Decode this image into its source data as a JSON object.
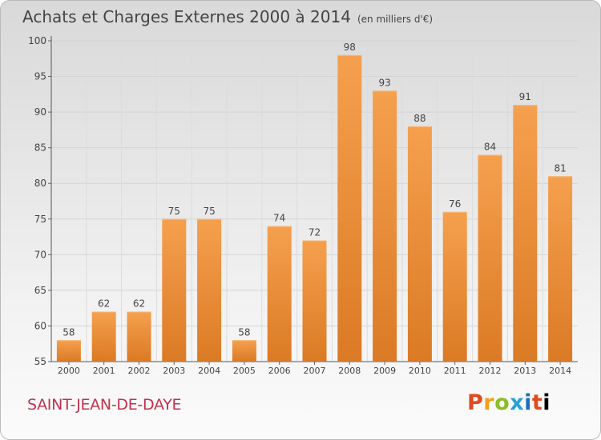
{
  "header": {
    "title": "Achats et Charges Externes 2000 à 2014",
    "subtitle": "(en milliers d'€)"
  },
  "footer": {
    "town": "SAINT-JEAN-DE-DAYE",
    "brand": "Proxiti"
  },
  "colors": {
    "bar_top": "#f5a04e",
    "bar_bottom": "#db7a25",
    "axis": "#444444",
    "town": "#c0334f"
  },
  "chart_data": {
    "type": "bar",
    "categories": [
      "2000",
      "2001",
      "2002",
      "2003",
      "2004",
      "2005",
      "2006",
      "2007",
      "2008",
      "2009",
      "2010",
      "2011",
      "2012",
      "2013",
      "2014"
    ],
    "values": [
      58,
      62,
      62,
      75,
      75,
      58,
      74,
      72,
      98,
      93,
      88,
      76,
      84,
      91,
      81
    ],
    "ylim": [
      55,
      100
    ],
    "yticks": [
      55,
      60,
      65,
      70,
      75,
      80,
      85,
      90,
      95,
      100
    ],
    "grid": true
  }
}
